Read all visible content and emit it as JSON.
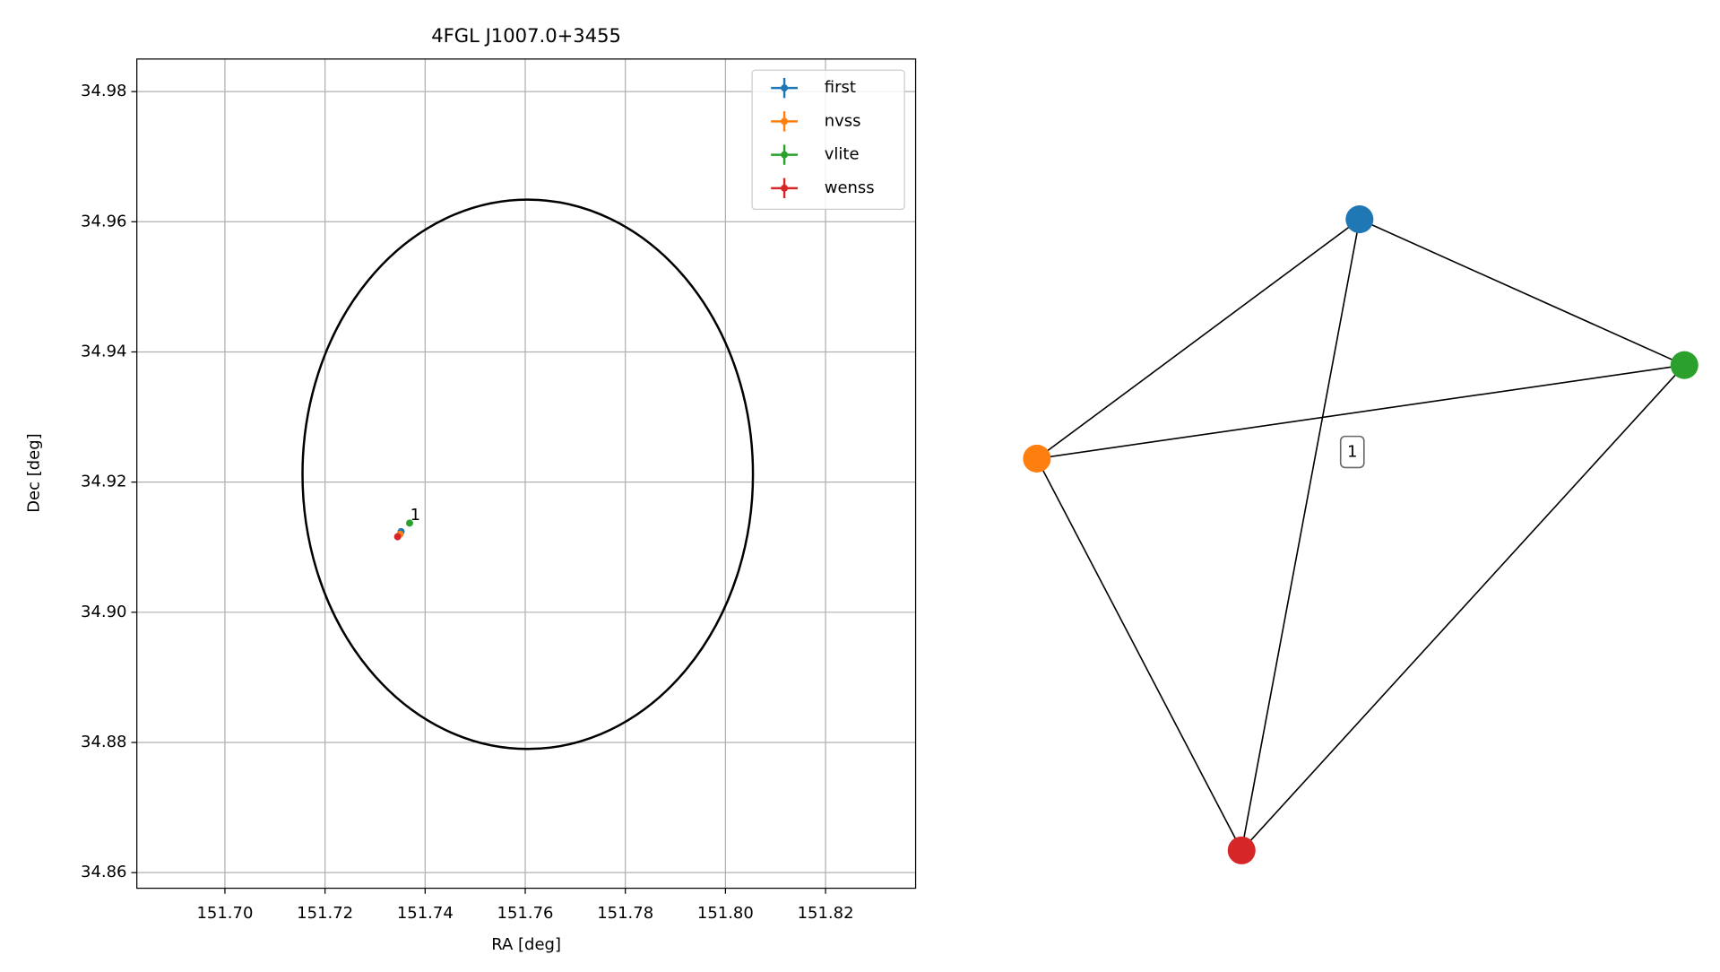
{
  "chart_data": {
    "type": "scatter",
    "title": "4FGL J1007.0+3455",
    "xlabel": "RA [deg]",
    "ylabel": "Dec [deg]",
    "xlim": [
      151.6824,
      151.838
    ],
    "ylim": [
      34.8576,
      34.985
    ],
    "xticks": [
      {
        "value": 151.7,
        "label": "151.70"
      },
      151.72,
      151.74,
      151.76,
      151.78,
      {
        "value": 151.8,
        "label": "151.80"
      },
      151.82
    ],
    "yticks": [
      34.86,
      34.88,
      {
        "value": 34.9,
        "label": "34.90"
      },
      34.92,
      34.94,
      34.96,
      34.98
    ],
    "grid": true,
    "legend": "upper right",
    "series": [
      {
        "name": "first",
        "color": "#1f77b4",
        "x": [
          151.7352
        ],
        "values": [
          34.9124
        ]
      },
      {
        "name": "nvss",
        "color": "#ff7f0e",
        "x": [
          151.735
        ],
        "values": [
          34.912
        ]
      },
      {
        "name": "vlite",
        "color": "#2ca02c",
        "x": [
          151.7369
        ],
        "values": [
          34.9137
        ]
      },
      {
        "name": "wenss",
        "color": "#d62728",
        "x": [
          151.7345
        ],
        "values": [
          34.9116
        ]
      }
    ],
    "ellipse": {
      "x": 151.7605,
      "y": 34.9212,
      "semi_x": 0.045,
      "semi_y": 0.0422,
      "color": "#000000"
    },
    "annotation": {
      "text": "1",
      "x": 151.737,
      "y": 34.9145
    }
  },
  "network": {
    "nodes": [
      {
        "color": "#1f77b4"
      },
      {
        "color": "#ff7f0e"
      },
      {
        "color": "#2ca02c"
      },
      {
        "color": "#d62728"
      }
    ],
    "edges": [
      [
        0,
        1
      ],
      [
        0,
        2
      ],
      [
        0,
        3
      ],
      [
        1,
        2
      ],
      [
        1,
        3
      ],
      [
        2,
        3
      ]
    ],
    "edge_label": "1"
  }
}
